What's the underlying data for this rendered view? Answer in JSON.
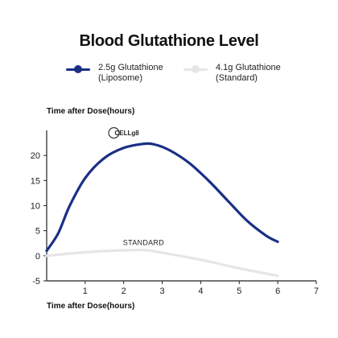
{
  "colors": {
    "primary": "#1b2f86",
    "secondary": "#e6e6e6",
    "axis": "#222222",
    "logo_accent": "#b8860b"
  },
  "chart_data": {
    "type": "line",
    "title": "Blood Glutathione Level",
    "ylabel": "Time after Dose(hours)",
    "xlabel": "Time after Dose(hours)",
    "xlim": [
      0,
      7
    ],
    "ylim": [
      -5,
      25
    ],
    "xticks": [
      1,
      2,
      3,
      4,
      5,
      6,
      7
    ],
    "yticks": [
      -5,
      0,
      5,
      10,
      15,
      20
    ],
    "legend_position": "top",
    "series": [
      {
        "name": "2.5g Glutathione\n(Liposome)",
        "color": "#1b2f86",
        "marker": "circle",
        "x": [
          0,
          0.3,
          0.6,
          1.0,
          1.5,
          2.0,
          2.5,
          2.8,
          3.2,
          3.7,
          4.2,
          4.7,
          5.2,
          5.7,
          6.0
        ],
        "y": [
          1,
          4.5,
          10,
          15.5,
          19.5,
          21.5,
          22.3,
          22.2,
          21,
          18.5,
          15,
          11,
          7,
          4,
          2.8
        ]
      },
      {
        "name": "4.1g Glutathione\n(Standard)",
        "color": "#e6e6e6",
        "marker": "circle",
        "x": [
          0,
          1.0,
          2.0,
          2.6,
          3.0,
          4.0,
          5.0,
          6.0
        ],
        "y": [
          0,
          0.7,
          1.1,
          1.1,
          0.6,
          -0.8,
          -2.5,
          -4.0
        ]
      }
    ],
    "annotations": [
      {
        "text": "STANDARD",
        "x": 2.6,
        "y": 2.6
      },
      {
        "text": "CELLg8",
        "x": 2.1,
        "y": 24.5
      }
    ]
  }
}
